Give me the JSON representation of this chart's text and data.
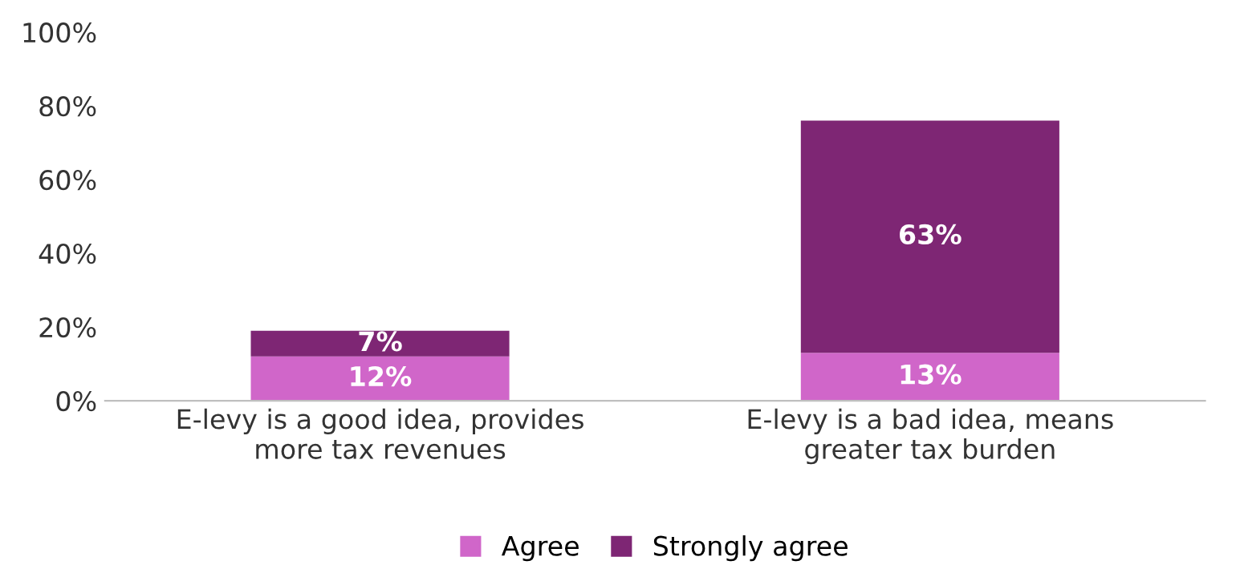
{
  "chart_data": {
    "type": "bar",
    "stacked": true,
    "categories": [
      "E-levy is a good idea, provides\nmore tax revenues",
      "E-levy is a bad idea, means\ngreater tax burden"
    ],
    "series": [
      {
        "name": "Agree",
        "color": "#d066c9",
        "values": [
          12,
          13
        ],
        "value_labels": [
          "12%",
          "13%"
        ]
      },
      {
        "name": "Strongly agree",
        "color": "#7e2674",
        "values": [
          7,
          63
        ],
        "value_labels": [
          "7%",
          "63%"
        ]
      }
    ],
    "ylim": [
      0,
      100
    ],
    "yticks": [
      {
        "value": 0,
        "label": "0%"
      },
      {
        "value": 20,
        "label": "20%"
      },
      {
        "value": 40,
        "label": "40%"
      },
      {
        "value": 60,
        "label": "60%"
      },
      {
        "value": 80,
        "label": "80%"
      },
      {
        "value": 100,
        "label": "100%"
      }
    ],
    "grid": false,
    "legend": "bottom"
  }
}
